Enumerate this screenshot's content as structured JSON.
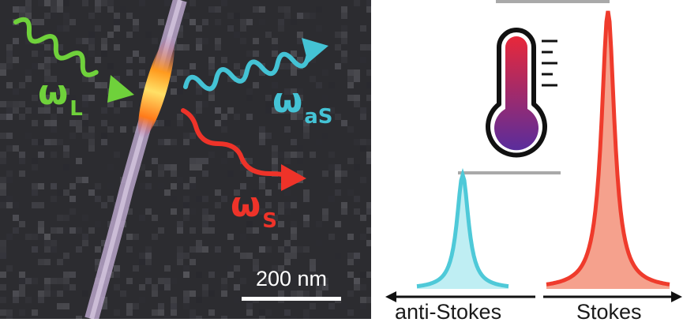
{
  "micrograph": {
    "omega_L": {
      "symbol": "ω",
      "subscript": "L",
      "color": "#6fd13b"
    },
    "omega_aS": {
      "symbol": "ω",
      "subscript": "aS",
      "color": "#44c3d5"
    },
    "omega_S": {
      "symbol": "ω",
      "subscript": "S",
      "color": "#ee3329"
    },
    "scale_bar_label": "200 nm"
  },
  "spectrum": {
    "anti_stokes_label": "anti-Stokes",
    "stokes_label": "Stokes",
    "anti_stokes_color": "#4ec9d8",
    "stokes_color": "#ef3b2c",
    "anti_stokes_peak_fraction": 0.41,
    "stokes_peak_fraction": 1.0
  },
  "icons": [
    "thermometer-icon"
  ]
}
